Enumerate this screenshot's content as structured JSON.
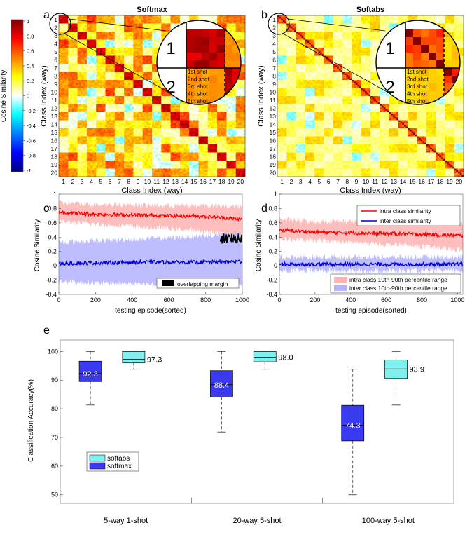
{
  "colors": {
    "intra_line": "#ff0000",
    "inter_line": "#0000dd",
    "intra_band": "#ffb3b3",
    "inter_band": "#b3b3ff",
    "overlap": "#000000",
    "softabs_box": "#7ff0f0",
    "softmax_box": "#3a3af0"
  },
  "panel_letters": [
    "a",
    "b",
    "c",
    "d",
    "e"
  ],
  "colorbar": {
    "label": "Cosine Similarity",
    "ticks": [
      "1",
      "0.8",
      "0.6",
      "0.4",
      "0.2",
      "0",
      "-0.2",
      "-0.4",
      "-0.6",
      "-0.8",
      "-1"
    ],
    "range": [
      -1,
      1
    ],
    "colormap": "jet"
  },
  "heatmaps": [
    {
      "title": "Softmax",
      "xlabel": "Class Index (way)",
      "ylabel": "Class Index (way)",
      "ticks": [
        "1",
        "2",
        "3",
        "4",
        "5",
        "6",
        "7",
        "8",
        "9",
        "10",
        "11",
        "12",
        "13",
        "14",
        "15",
        "16",
        "17",
        "18",
        "19",
        "20"
      ],
      "inset_big_labels": [
        "1",
        "2"
      ],
      "inset_shot_labels": [
        "1st shot",
        "2nd shot",
        "3rd shot",
        "4th shot",
        "5th shot"
      ]
    },
    {
      "title": "Softabs",
      "xlabel": "Class Index (way)",
      "ylabel": "Class Index (way)",
      "ticks": [
        "1",
        "2",
        "3",
        "4",
        "5",
        "6",
        "7",
        "8",
        "9",
        "10",
        "11",
        "12",
        "13",
        "14",
        "15",
        "16",
        "17",
        "18",
        "19",
        "20"
      ],
      "inset_big_labels": [
        "1",
        "2"
      ],
      "inset_shot_labels": [
        "1st shot",
        "2nd shot",
        "3rd shot",
        "4th shot",
        "5th shot"
      ]
    }
  ],
  "chart_data": [
    {
      "type": "heatmap",
      "panel": "a",
      "title": "Softmax",
      "classes": 20,
      "shots_per_class": 5,
      "value_range": [
        -1,
        1
      ],
      "diagonal_block_mean": 0.8,
      "off_diagonal_mean": 0.3
    },
    {
      "type": "heatmap",
      "panel": "b",
      "title": "Softabs",
      "classes": 20,
      "shots_per_class": 5,
      "value_range": [
        -1,
        1
      ],
      "diagonal_block_mean": 0.55,
      "off_diagonal_mean": 0.05
    },
    {
      "type": "line",
      "panel": "c",
      "xlabel": "testing episode(sorted)",
      "ylabel": "Cosine Similarity",
      "xlim": [
        0,
        1000
      ],
      "ylim": [
        -0.4,
        1
      ],
      "xticks": [
        "0",
        "200",
        "400",
        "600",
        "800",
        "1000"
      ],
      "yticks": [
        "-0.4",
        "-0.2",
        "0",
        "0.2",
        "0.4",
        "0.6",
        "0.8",
        "1"
      ],
      "legend": [
        "overlapping margin"
      ],
      "legend_position": "bottom-right",
      "series": [
        {
          "role": "intra",
          "x": [
            0,
            200,
            400,
            600,
            800,
            1000
          ],
          "mean": [
            0.75,
            0.72,
            0.71,
            0.7,
            0.69,
            0.65
          ],
          "p10": [
            0.62,
            0.58,
            0.55,
            0.52,
            0.48,
            0.42
          ],
          "p90": [
            0.88,
            0.86,
            0.85,
            0.84,
            0.84,
            0.82
          ]
        },
        {
          "role": "inter",
          "x": [
            0,
            200,
            400,
            600,
            800,
            1000
          ],
          "mean": [
            0.03,
            0.04,
            0.05,
            0.05,
            0.05,
            0.06
          ],
          "p10": [
            -0.22,
            -0.24,
            -0.25,
            -0.26,
            -0.27,
            -0.28
          ],
          "p90": [
            0.33,
            0.35,
            0.37,
            0.39,
            0.42,
            0.46
          ]
        }
      ]
    },
    {
      "type": "line",
      "panel": "d",
      "xlabel": "testing episode(sorted)",
      "ylabel": "Cosine Similarity",
      "xlim": [
        0,
        1030
      ],
      "ylim": [
        -0.4,
        1
      ],
      "xticks": [
        "0",
        "200",
        "400",
        "600",
        "800",
        "1000"
      ],
      "yticks": [
        "-0.4",
        "-0.2",
        "0",
        "0.2",
        "0.4",
        "0.6",
        "0.8",
        "1"
      ],
      "legend": [
        "intra class similarity",
        "inter class similarity",
        "intra class 10th-90th percentile range",
        "inter class 10th-90th percentile range"
      ],
      "legend_position": "top-right / bottom-right",
      "series": [
        {
          "role": "intra",
          "x": [
            0,
            200,
            400,
            600,
            800,
            1030
          ],
          "mean": [
            0.5,
            0.47,
            0.46,
            0.45,
            0.44,
            0.42
          ],
          "p10": [
            0.38,
            0.35,
            0.33,
            0.3,
            0.27,
            0.22
          ],
          "p90": [
            0.65,
            0.62,
            0.62,
            0.61,
            0.6,
            0.6
          ]
        },
        {
          "role": "inter",
          "x": [
            0,
            200,
            400,
            600,
            800,
            1030
          ],
          "mean": [
            0.02,
            0.02,
            0.02,
            0.02,
            0.02,
            0.02
          ],
          "p10": [
            -0.07,
            -0.07,
            -0.07,
            -0.07,
            -0.07,
            -0.07
          ],
          "p90": [
            0.12,
            0.12,
            0.12,
            0.12,
            0.12,
            0.12
          ]
        }
      ]
    },
    {
      "type": "box",
      "panel": "e",
      "ylabel": "Classification Accuracy(%)",
      "ylim": [
        47,
        104
      ],
      "yticks": [
        "50",
        "60",
        "70",
        "80",
        "90",
        "100"
      ],
      "categories": [
        "5-way 1-shot",
        "20-way 5-shot",
        "100-way 5-shot"
      ],
      "legend": [
        "softabs",
        "softmax"
      ],
      "legend_position": "left",
      "series": [
        {
          "name": "softmax",
          "median": [
            92.3,
            88.4,
            74.3
          ],
          "q1": [
            89.5,
            84.1,
            68.8
          ],
          "q3": [
            96.6,
            93.3,
            81.2
          ],
          "whisker_low": [
            81.3,
            71.9,
            50.0
          ],
          "whisker_high": [
            100,
            100,
            93.8
          ]
        },
        {
          "name": "softabs",
          "median": [
            97.3,
            98.0,
            93.9
          ],
          "q1": [
            96.0,
            96.4,
            90.6
          ],
          "q3": [
            100,
            100,
            97.0
          ],
          "whisker_low": [
            93.8,
            93.8,
            81.3
          ],
          "whisker_high": [
            100,
            100,
            100
          ]
        }
      ],
      "median_labels": {
        "softmax": [
          "92.3",
          "88.4",
          "74.3"
        ],
        "softabs": [
          "97.3",
          "98.0",
          "93.9"
        ]
      }
    }
  ]
}
